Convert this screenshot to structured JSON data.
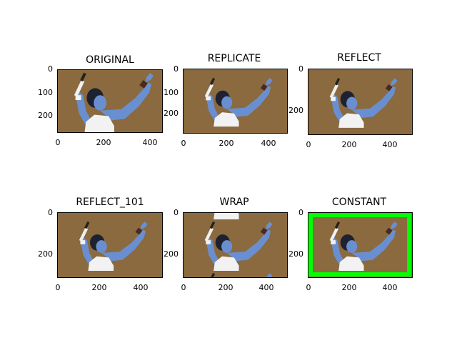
{
  "figure": {
    "panels": [
      {
        "title": "ORIGINAL",
        "border_mode": "original",
        "yticks": [
          "0",
          "100",
          "200"
        ],
        "xticks": [
          "0",
          "200",
          "400"
        ]
      },
      {
        "title": "REPLICATE",
        "border_mode": "replicate",
        "yticks": [
          "0",
          "100",
          "200"
        ],
        "xticks": [
          "0",
          "200",
          "400"
        ]
      },
      {
        "title": "REFLECT",
        "border_mode": "reflect",
        "yticks": [
          "0",
          "200"
        ],
        "xticks": [
          "0",
          "200",
          "400"
        ]
      },
      {
        "title": "REFLECT_101",
        "border_mode": "reflect_101",
        "yticks": [
          "0",
          "200"
        ],
        "xticks": [
          "0",
          "200",
          "400"
        ]
      },
      {
        "title": "WRAP",
        "border_mode": "wrap",
        "yticks": [
          "0",
          "200"
        ],
        "xticks": [
          "0",
          "200",
          "400"
        ]
      },
      {
        "title": "CONSTANT",
        "border_mode": "constant",
        "border_color": "#00ff00",
        "yticks": [
          "0",
          "200"
        ],
        "xticks": [
          "0",
          "200",
          "400"
        ]
      }
    ],
    "colors": {
      "background_brown": "#8a6a3e",
      "skin_blue": "#6a8fd0",
      "hair_dark": "#1e2230",
      "shirt_white": "#f2f2f2",
      "wristband": "#4a2a1e"
    }
  }
}
